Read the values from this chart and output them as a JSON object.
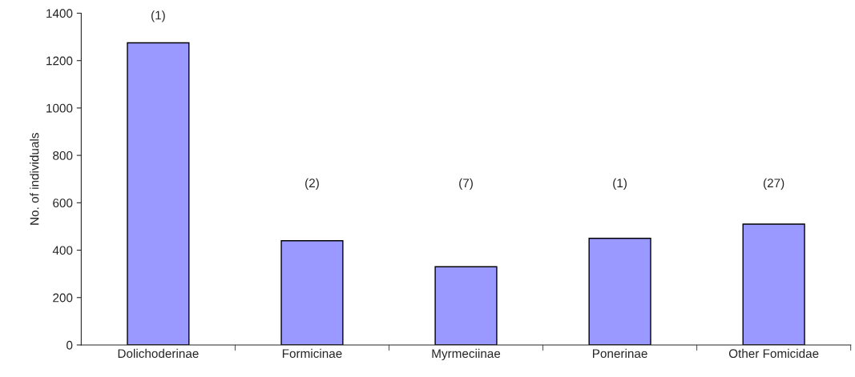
{
  "chart_data": {
    "type": "bar",
    "ylabel": "No. of individuals",
    "categories": [
      "Dolichoderinae",
      "Formicinae",
      "Myrmeciinae",
      "Ponerinae",
      "Other Fomicidae"
    ],
    "values": [
      1275,
      440,
      330,
      450,
      510
    ],
    "color": "#9999ff",
    "ylim": [
      0,
      1400
    ],
    "yticks": [
      0,
      200,
      400,
      600,
      800,
      1000,
      1200,
      1400
    ],
    "grid": false,
    "legend": false,
    "annotations": [
      "(1)",
      "(2)",
      "(7)",
      "(1)",
      "(27)"
    ]
  }
}
